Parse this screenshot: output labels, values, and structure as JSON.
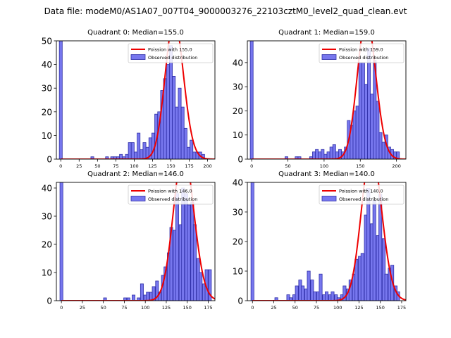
{
  "figure_title": "Data file: modeM0/AS1A07_007T04_9000003276_22103cztM0_level2_quad_clean.evt",
  "chart_data": [
    {
      "type": "bar",
      "title": "Quadrant 0: Median=155.0",
      "median": 155.0,
      "xlim": [
        -6,
        210
      ],
      "ylim": [
        0,
        50
      ],
      "xticks": [
        0,
        25,
        50,
        75,
        100,
        125,
        150,
        175,
        200
      ],
      "yticks": [
        0,
        10,
        20,
        30,
        40,
        50
      ],
      "bin_width": 4,
      "bins": [
        {
          "x": 0,
          "y": 50
        },
        {
          "x": 43,
          "y": 1
        },
        {
          "x": 63,
          "y": 1
        },
        {
          "x": 70,
          "y": 1
        },
        {
          "x": 74,
          "y": 1
        },
        {
          "x": 78,
          "y": 1
        },
        {
          "x": 82,
          "y": 2
        },
        {
          "x": 86,
          "y": 1
        },
        {
          "x": 90,
          "y": 2
        },
        {
          "x": 94,
          "y": 7
        },
        {
          "x": 98,
          "y": 7
        },
        {
          "x": 102,
          "y": 3
        },
        {
          "x": 106,
          "y": 11
        },
        {
          "x": 110,
          "y": 4
        },
        {
          "x": 114,
          "y": 7
        },
        {
          "x": 118,
          "y": 5
        },
        {
          "x": 122,
          "y": 9
        },
        {
          "x": 126,
          "y": 11
        },
        {
          "x": 130,
          "y": 19
        },
        {
          "x": 134,
          "y": 20
        },
        {
          "x": 138,
          "y": 29
        },
        {
          "x": 142,
          "y": 34
        },
        {
          "x": 146,
          "y": 40
        },
        {
          "x": 150,
          "y": 48
        },
        {
          "x": 154,
          "y": 35
        },
        {
          "x": 158,
          "y": 22
        },
        {
          "x": 162,
          "y": 30
        },
        {
          "x": 166,
          "y": 22
        },
        {
          "x": 170,
          "y": 13
        },
        {
          "x": 174,
          "y": 5
        },
        {
          "x": 178,
          "y": 8
        },
        {
          "x": 182,
          "y": 3
        },
        {
          "x": 186,
          "y": 3
        },
        {
          "x": 190,
          "y": 3
        },
        {
          "x": 194,
          "y": 2
        }
      ],
      "legend": {
        "poisson": "Poission with 155.0",
        "observed": "Observed distribution",
        "position": "top-right"
      }
    },
    {
      "type": "bar",
      "title": "Quadrant 1: Median=159.0",
      "median": 159.0,
      "xlim": [
        -6,
        213
      ],
      "ylim": [
        0,
        49
      ],
      "xticks": [
        0,
        50,
        100,
        150,
        200
      ],
      "yticks": [
        0,
        10,
        20,
        30,
        40
      ],
      "bin_width": 4,
      "bins": [
        {
          "x": 0,
          "y": 49
        },
        {
          "x": 48,
          "y": 1
        },
        {
          "x": 62,
          "y": 1
        },
        {
          "x": 66,
          "y": 1
        },
        {
          "x": 82,
          "y": 1
        },
        {
          "x": 86,
          "y": 3
        },
        {
          "x": 90,
          "y": 4
        },
        {
          "x": 94,
          "y": 3
        },
        {
          "x": 98,
          "y": 4
        },
        {
          "x": 102,
          "y": 2
        },
        {
          "x": 106,
          "y": 3
        },
        {
          "x": 110,
          "y": 5
        },
        {
          "x": 114,
          "y": 6
        },
        {
          "x": 118,
          "y": 3
        },
        {
          "x": 122,
          "y": 4
        },
        {
          "x": 126,
          "y": 3
        },
        {
          "x": 130,
          "y": 5
        },
        {
          "x": 134,
          "y": 16
        },
        {
          "x": 138,
          "y": 14
        },
        {
          "x": 142,
          "y": 20
        },
        {
          "x": 146,
          "y": 22
        },
        {
          "x": 150,
          "y": 40
        },
        {
          "x": 154,
          "y": 40
        },
        {
          "x": 158,
          "y": 31
        },
        {
          "x": 162,
          "y": 46
        },
        {
          "x": 166,
          "y": 27
        },
        {
          "x": 170,
          "y": 41
        },
        {
          "x": 174,
          "y": 24
        },
        {
          "x": 178,
          "y": 11
        },
        {
          "x": 182,
          "y": 7
        },
        {
          "x": 186,
          "y": 10
        },
        {
          "x": 190,
          "y": 5
        },
        {
          "x": 194,
          "y": 4
        },
        {
          "x": 198,
          "y": 3
        },
        {
          "x": 202,
          "y": 3
        }
      ],
      "legend": {
        "poisson": "Poission with 159.0",
        "observed": "Observed distribution",
        "position": "top-right"
      }
    },
    {
      "type": "bar",
      "title": "Quadrant 2: Median=146.0",
      "median": 146.0,
      "xlim": [
        -6,
        183
      ],
      "ylim": [
        0,
        42
      ],
      "xticks": [
        0,
        25,
        50,
        75,
        100,
        125,
        150,
        175
      ],
      "yticks": [
        0,
        10,
        20,
        30,
        40
      ],
      "bin_width": 3.5,
      "bins": [
        {
          "x": 0,
          "y": 42
        },
        {
          "x": 52,
          "y": 1
        },
        {
          "x": 76,
          "y": 1
        },
        {
          "x": 80,
          "y": 1
        },
        {
          "x": 86,
          "y": 2
        },
        {
          "x": 92,
          "y": 1
        },
        {
          "x": 96,
          "y": 6
        },
        {
          "x": 100,
          "y": 2
        },
        {
          "x": 103,
          "y": 3
        },
        {
          "x": 107,
          "y": 3
        },
        {
          "x": 110,
          "y": 5
        },
        {
          "x": 114,
          "y": 7
        },
        {
          "x": 117,
          "y": 3
        },
        {
          "x": 121,
          "y": 9
        },
        {
          "x": 124,
          "y": 12
        },
        {
          "x": 128,
          "y": 17
        },
        {
          "x": 131,
          "y": 26
        },
        {
          "x": 135,
          "y": 25
        },
        {
          "x": 138,
          "y": 38
        },
        {
          "x": 142,
          "y": 27
        },
        {
          "x": 145,
          "y": 40
        },
        {
          "x": 149,
          "y": 38
        },
        {
          "x": 152,
          "y": 34
        },
        {
          "x": 156,
          "y": 35
        },
        {
          "x": 159,
          "y": 27
        },
        {
          "x": 163,
          "y": 15
        },
        {
          "x": 166,
          "y": 10
        },
        {
          "x": 170,
          "y": 6
        },
        {
          "x": 173,
          "y": 11
        },
        {
          "x": 177,
          "y": 11
        }
      ],
      "legend": {
        "poisson": "Poission with 146.0",
        "observed": "Observed distribution",
        "position": "top-right"
      }
    },
    {
      "type": "bar",
      "title": "Quadrant 3: Median=140.0",
      "median": 140.0,
      "xlim": [
        -6,
        180
      ],
      "ylim": [
        0,
        40
      ],
      "xticks": [
        0,
        25,
        50,
        75,
        100,
        125,
        150,
        175
      ],
      "yticks": [
        0,
        10,
        20,
        30,
        40
      ],
      "bin_width": 3.5,
      "bins": [
        {
          "x": 0,
          "y": 40
        },
        {
          "x": 28,
          "y": 1
        },
        {
          "x": 42,
          "y": 2
        },
        {
          "x": 45,
          "y": 1
        },
        {
          "x": 49,
          "y": 2
        },
        {
          "x": 52,
          "y": 5
        },
        {
          "x": 56,
          "y": 7
        },
        {
          "x": 59,
          "y": 5
        },
        {
          "x": 63,
          "y": 4
        },
        {
          "x": 66,
          "y": 10
        },
        {
          "x": 70,
          "y": 7
        },
        {
          "x": 73,
          "y": 3
        },
        {
          "x": 77,
          "y": 3
        },
        {
          "x": 80,
          "y": 9
        },
        {
          "x": 84,
          "y": 2
        },
        {
          "x": 87,
          "y": 3
        },
        {
          "x": 91,
          "y": 2
        },
        {
          "x": 94,
          "y": 3
        },
        {
          "x": 98,
          "y": 2
        },
        {
          "x": 101,
          "y": 1
        },
        {
          "x": 105,
          "y": 2
        },
        {
          "x": 108,
          "y": 5
        },
        {
          "x": 112,
          "y": 4
        },
        {
          "x": 115,
          "y": 7
        },
        {
          "x": 119,
          "y": 9
        },
        {
          "x": 122,
          "y": 14
        },
        {
          "x": 126,
          "y": 15
        },
        {
          "x": 129,
          "y": 16
        },
        {
          "x": 133,
          "y": 29
        },
        {
          "x": 136,
          "y": 38
        },
        {
          "x": 140,
          "y": 26
        },
        {
          "x": 143,
          "y": 34
        },
        {
          "x": 147,
          "y": 22
        },
        {
          "x": 150,
          "y": 36
        },
        {
          "x": 154,
          "y": 21
        },
        {
          "x": 157,
          "y": 9
        },
        {
          "x": 161,
          "y": 11
        },
        {
          "x": 164,
          "y": 12
        },
        {
          "x": 168,
          "y": 5
        },
        {
          "x": 171,
          "y": 3
        }
      ],
      "legend": {
        "poisson": "Poission with 140.0",
        "observed": "Observed distribution",
        "position": "top-right"
      }
    }
  ],
  "colors": {
    "bar_fill": "#7777ee",
    "bar_edge": "#2f2fa8",
    "poisson_line": "#ee0000",
    "axis": "#000000"
  }
}
